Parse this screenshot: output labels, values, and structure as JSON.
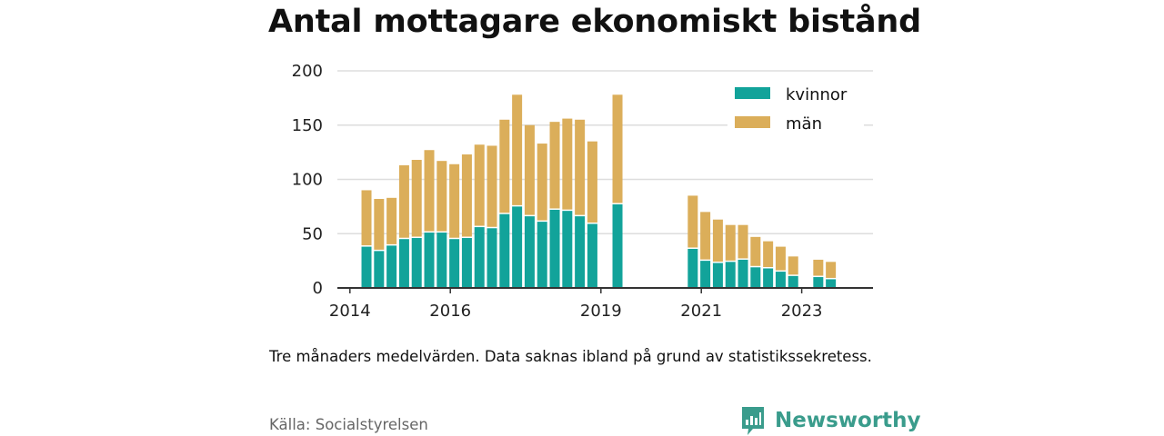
{
  "title": "Antal mottagare ekonomiskt bistånd",
  "note": "Tre månaders medelvärden. Data saknas ibland på grund av statistikssekretess.",
  "source": "Källa: Socialstyrelsen",
  "brand": {
    "name": "Newsworthy",
    "icon": "newsworthy-chart-icon"
  },
  "colors": {
    "kvinnor": "#12a39a",
    "man": "#dbae5a",
    "grid": "#dddddd",
    "axis": "#333333"
  },
  "chart_data": {
    "type": "bar",
    "stacked": true,
    "ylim": [
      0,
      200
    ],
    "yticks": [
      0,
      50,
      100,
      150,
      200
    ],
    "xlim": [
      2013.75,
      2024.42
    ],
    "xticks": [
      2014,
      2016,
      2019,
      2021,
      2023
    ],
    "xticklabels": [
      "2014",
      "2016",
      "2019",
      "2021",
      "2023"
    ],
    "grid": true,
    "legend_position": "top-right",
    "x": [
      2014.33,
      2014.58,
      2014.83,
      2015.08,
      2015.33,
      2015.58,
      2015.83,
      2016.08,
      2016.33,
      2016.58,
      2016.83,
      2017.08,
      2017.33,
      2017.58,
      2017.83,
      2018.08,
      2018.33,
      2018.58,
      2018.83,
      2019.33,
      2020.83,
      2021.08,
      2021.33,
      2021.58,
      2021.83,
      2022.08,
      2022.33,
      2022.58,
      2022.83,
      2023.33,
      2023.58
    ],
    "series": [
      {
        "name": "kvinnor",
        "values": [
          38,
          34,
          39,
          45,
          46,
          51,
          51,
          45,
          46,
          56,
          55,
          68,
          75,
          66,
          61,
          72,
          71,
          66,
          59,
          77,
          36,
          25,
          23,
          24,
          26,
          19,
          18,
          15,
          11,
          10,
          8
        ]
      },
      {
        "name": "män",
        "values": [
          52,
          48,
          44,
          68,
          72,
          76,
          66,
          69,
          77,
          76,
          76,
          87,
          103,
          84,
          72,
          81,
          85,
          89,
          76,
          101,
          49,
          45,
          40,
          34,
          32,
          28,
          25,
          23,
          18,
          16,
          16
        ]
      }
    ]
  }
}
